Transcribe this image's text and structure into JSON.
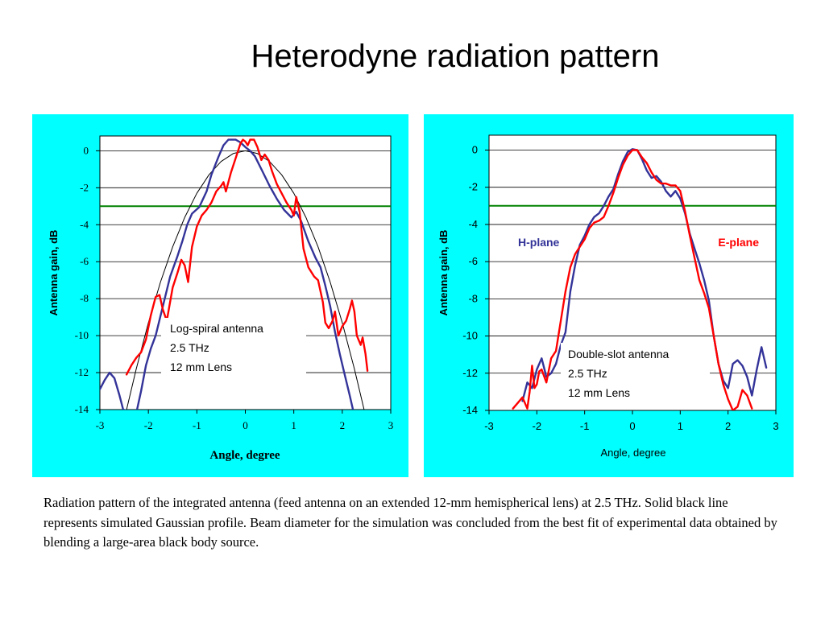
{
  "title": "Heterodyne radiation pattern",
  "caption": "Radiation pattern of the integrated antenna (feed antenna on an extended 12-mm hemispherical lens) at 2.5 THz. Solid black line represents simulated Gaussian profile. Beam diameter for the simulation was concluded from the best fit of experimental data obtained by blending a large-area black body source.",
  "colors": {
    "panel_bg": "#00FFFF",
    "plot_bg": "#FFFFFF",
    "blue": "#333399",
    "red": "#FF0000",
    "green": "#008000",
    "black": "#000000"
  },
  "chart_data": [
    {
      "type": "line",
      "xlabel": "Angle, degree",
      "ylabel": "Antenna gain, dB",
      "xlim": [
        -3,
        3
      ],
      "ylim": [
        -14,
        0.8
      ],
      "xticks": [
        "-3",
        "-2",
        "-1",
        "0",
        "1",
        "2",
        "3"
      ],
      "yticks": [
        "0",
        "-2",
        "-4",
        "-6",
        "-8",
        "-10",
        "-12",
        "-14"
      ],
      "grid": "horizontal",
      "annotation": [
        "Log-spiral antenna",
        "2.5 THz",
        "12 mm Lens"
      ],
      "reference_line_y": -3,
      "series": [
        {
          "color": "#333399",
          "points": [
            [
              -3,
              -12.9
            ],
            [
              -2.9,
              -12.4
            ],
            [
              -2.8,
              -12
            ],
            [
              -2.7,
              -12.3
            ],
            [
              -2.6,
              -13.2
            ],
            [
              -2.52,
              -14
            ],
            [
              -2.25,
              -14.2
            ],
            [
              -2.15,
              -13
            ],
            [
              -2.05,
              -11.6
            ],
            [
              -1.95,
              -10.7
            ],
            [
              -1.85,
              -10
            ],
            [
              -1.7,
              -8.4
            ],
            [
              -1.55,
              -6.8
            ],
            [
              -1.4,
              -5.7
            ],
            [
              -1.3,
              -4.9
            ],
            [
              -1.2,
              -4
            ],
            [
              -1.1,
              -3.4
            ],
            [
              -0.95,
              -3.05
            ],
            [
              -0.8,
              -2.2
            ],
            [
              -0.7,
              -1.3
            ],
            [
              -0.55,
              -0.3
            ],
            [
              -0.45,
              0.3
            ],
            [
              -0.35,
              0.6
            ],
            [
              -0.2,
              0.6
            ],
            [
              -0.1,
              0.45
            ],
            [
              0,
              0.2
            ],
            [
              0.1,
              0
            ],
            [
              0.2,
              -0.3
            ],
            [
              0.35,
              -1.1
            ],
            [
              0.5,
              -1.9
            ],
            [
              0.65,
              -2.6
            ],
            [
              0.8,
              -3.2
            ],
            [
              0.95,
              -3.6
            ],
            [
              1.05,
              -3.3
            ],
            [
              1.15,
              -3.8
            ],
            [
              1.3,
              -4.9
            ],
            [
              1.45,
              -5.8
            ],
            [
              1.55,
              -6.3
            ],
            [
              1.65,
              -7.3
            ],
            [
              1.75,
              -8.4
            ],
            [
              1.85,
              -9.8
            ],
            [
              1.95,
              -11
            ],
            [
              2.05,
              -12.1
            ],
            [
              2.15,
              -13.2
            ],
            [
              2.22,
              -14
            ]
          ]
        },
        {
          "color": "#FF0000",
          "points": [
            [
              -2.45,
              -12.1
            ],
            [
              -2.35,
              -11.6
            ],
            [
              -2.25,
              -11.2
            ],
            [
              -2.15,
              -10.9
            ],
            [
              -2.05,
              -10.2
            ],
            [
              -1.95,
              -8.9
            ],
            [
              -1.85,
              -7.9
            ],
            [
              -1.77,
              -7.8
            ],
            [
              -1.7,
              -8.6
            ],
            [
              -1.62,
              -9.2
            ],
            [
              -1.5,
              -7.4
            ],
            [
              -1.4,
              -6.6
            ],
            [
              -1.32,
              -5.9
            ],
            [
              -1.25,
              -6.2
            ],
            [
              -1.18,
              -7.1
            ],
            [
              -1.1,
              -5.2
            ],
            [
              -1.0,
              -4.1
            ],
            [
              -0.9,
              -3.5
            ],
            [
              -0.8,
              -3.2
            ],
            [
              -0.7,
              -2.8
            ],
            [
              -0.6,
              -2.2
            ],
            [
              -0.5,
              -1.9
            ],
            [
              -0.45,
              -1.7
            ],
            [
              -0.4,
              -2.2
            ],
            [
              -0.3,
              -1.2
            ],
            [
              -0.2,
              -0.4
            ],
            [
              -0.1,
              0.4
            ],
            [
              -0.05,
              0.6
            ],
            [
              0,
              0.5
            ],
            [
              0.05,
              0.3
            ],
            [
              0.1,
              0.6
            ],
            [
              0.18,
              0.6
            ],
            [
              0.25,
              0.2
            ],
            [
              0.33,
              -0.5
            ],
            [
              0.4,
              -0.2
            ],
            [
              0.48,
              -0.5
            ],
            [
              0.55,
              -1.1
            ],
            [
              0.65,
              -1.8
            ],
            [
              0.75,
              -2.3
            ],
            [
              0.85,
              -2.8
            ],
            [
              0.95,
              -3.2
            ],
            [
              1.0,
              -3.5
            ],
            [
              1.05,
              -2.5
            ],
            [
              1.12,
              -3.3
            ],
            [
              1.2,
              -5.3
            ],
            [
              1.3,
              -6.3
            ],
            [
              1.42,
              -6.8
            ],
            [
              1.5,
              -7
            ],
            [
              1.6,
              -8.2
            ],
            [
              1.65,
              -9.3
            ],
            [
              1.72,
              -9.6
            ],
            [
              1.8,
              -9.2
            ],
            [
              1.85,
              -8.7
            ],
            [
              1.92,
              -10
            ],
            [
              2.0,
              -9.5
            ],
            [
              2.08,
              -9.2
            ],
            [
              2.15,
              -8.6
            ],
            [
              2.2,
              -8.1
            ],
            [
              2.25,
              -8.7
            ],
            [
              2.3,
              -10
            ],
            [
              2.38,
              -10.5
            ],
            [
              2.42,
              -10.1
            ],
            [
              2.48,
              -11
            ],
            [
              2.52,
              -11.9
            ]
          ]
        },
        {
          "color": "#000000",
          "name": "",
          "points": [
            [
              -2.45,
              -14
            ],
            [
              -2.25,
              -11.8
            ],
            [
              -2.0,
              -9.3
            ],
            [
              -1.75,
              -7.1
            ],
            [
              -1.5,
              -5.2
            ],
            [
              -1.25,
              -3.6
            ],
            [
              -1.0,
              -2.3
            ],
            [
              -0.75,
              -1.3
            ],
            [
              -0.5,
              -0.58
            ],
            [
              -0.25,
              -0.15
            ],
            [
              0,
              0
            ],
            [
              0.25,
              -0.15
            ],
            [
              0.5,
              -0.58
            ],
            [
              0.75,
              -1.3
            ],
            [
              1.0,
              -2.3
            ],
            [
              1.25,
              -3.6
            ],
            [
              1.5,
              -5.2
            ],
            [
              1.75,
              -7.1
            ],
            [
              2.0,
              -9.3
            ],
            [
              2.25,
              -11.8
            ],
            [
              2.45,
              -14
            ]
          ]
        }
      ]
    },
    {
      "type": "line",
      "xlabel": "Angle, degree",
      "ylabel": "Antenna gain, dB",
      "xlim": [
        -3,
        3
      ],
      "ylim": [
        -14,
        0.8
      ],
      "xticks": [
        "-3",
        "-2",
        "-1",
        "0",
        "1",
        "2",
        "3"
      ],
      "yticks": [
        "0",
        "-2",
        "-4",
        "-6",
        "-8",
        "-10",
        "-12",
        "-14"
      ],
      "grid": "horizontal",
      "annotation": [
        "Double-slot antenna",
        "2.5 THz",
        "12 mm Lens"
      ],
      "reference_line_y": -3,
      "series": [
        {
          "name": "H-plane",
          "color": "#333399",
          "points": [
            [
              -2.3,
              -13.5
            ],
            [
              -2.2,
              -12.5
            ],
            [
              -2.1,
              -12.8
            ],
            [
              -2.0,
              -11.8
            ],
            [
              -1.9,
              -11.2
            ],
            [
              -1.8,
              -12.2
            ],
            [
              -1.7,
              -12
            ],
            [
              -1.6,
              -11.5
            ],
            [
              -1.5,
              -10.5
            ],
            [
              -1.4,
              -9.8
            ],
            [
              -1.3,
              -7.6
            ],
            [
              -1.2,
              -6.2
            ],
            [
              -1.1,
              -5.1
            ],
            [
              -1.0,
              -4.6
            ],
            [
              -0.9,
              -4.0
            ],
            [
              -0.8,
              -3.6
            ],
            [
              -0.7,
              -3.4
            ],
            [
              -0.6,
              -3.0
            ],
            [
              -0.5,
              -2.5
            ],
            [
              -0.4,
              -2.1
            ],
            [
              -0.3,
              -1.3
            ],
            [
              -0.2,
              -0.6
            ],
            [
              -0.1,
              -0.1
            ],
            [
              0,
              0.05
            ],
            [
              0.1,
              0
            ],
            [
              0.2,
              -0.5
            ],
            [
              0.3,
              -1.1
            ],
            [
              0.4,
              -1.5
            ],
            [
              0.5,
              -1.4
            ],
            [
              0.6,
              -1.7
            ],
            [
              0.7,
              -2.2
            ],
            [
              0.8,
              -2.5
            ],
            [
              0.9,
              -2.2
            ],
            [
              1.0,
              -2.6
            ],
            [
              1.1,
              -3.4
            ],
            [
              1.2,
              -4.5
            ],
            [
              1.3,
              -5.3
            ],
            [
              1.4,
              -6.1
            ],
            [
              1.5,
              -7.0
            ],
            [
              1.6,
              -8.1
            ],
            [
              1.7,
              -10
            ],
            [
              1.8,
              -11.5
            ],
            [
              1.9,
              -12.4
            ],
            [
              2.0,
              -12.8
            ],
            [
              2.1,
              -11.5
            ],
            [
              2.2,
              -11.3
            ],
            [
              2.3,
              -11.6
            ],
            [
              2.4,
              -12.2
            ],
            [
              2.5,
              -13.2
            ],
            [
              2.6,
              -11.8
            ],
            [
              2.7,
              -10.6
            ],
            [
              2.8,
              -11.7
            ]
          ]
        },
        {
          "name": "E-plane",
          "color": "#FF0000",
          "points": [
            [
              -2.5,
              -13.9
            ],
            [
              -2.4,
              -13.6
            ],
            [
              -2.3,
              -13.3
            ],
            [
              -2.2,
              -13.9
            ],
            [
              -2.15,
              -13
            ],
            [
              -2.1,
              -11.6
            ],
            [
              -2.05,
              -12.8
            ],
            [
              -2.0,
              -12.6
            ],
            [
              -1.95,
              -11.9
            ],
            [
              -1.9,
              -11.8
            ],
            [
              -1.8,
              -12.5
            ],
            [
              -1.7,
              -11.2
            ],
            [
              -1.6,
              -10.8
            ],
            [
              -1.5,
              -9.2
            ],
            [
              -1.4,
              -7.6
            ],
            [
              -1.3,
              -6.3
            ],
            [
              -1.2,
              -5.6
            ],
            [
              -1.1,
              -5.2
            ],
            [
              -1.0,
              -4.8
            ],
            [
              -0.9,
              -4.2
            ],
            [
              -0.8,
              -3.9
            ],
            [
              -0.7,
              -3.8
            ],
            [
              -0.6,
              -3.6
            ],
            [
              -0.5,
              -3.0
            ],
            [
              -0.4,
              -2.3
            ],
            [
              -0.3,
              -1.5
            ],
            [
              -0.2,
              -0.8
            ],
            [
              -0.1,
              -0.3
            ],
            [
              0,
              0
            ],
            [
              0.1,
              0
            ],
            [
              0.2,
              -0.4
            ],
            [
              0.3,
              -0.7
            ],
            [
              0.4,
              -1.2
            ],
            [
              0.5,
              -1.6
            ],
            [
              0.6,
              -1.8
            ],
            [
              0.7,
              -1.8
            ],
            [
              0.8,
              -1.9
            ],
            [
              0.9,
              -1.9
            ],
            [
              1.0,
              -2.2
            ],
            [
              1.1,
              -3.3
            ],
            [
              1.2,
              -4.6
            ],
            [
              1.3,
              -5.8
            ],
            [
              1.4,
              -7.0
            ],
            [
              1.5,
              -7.7
            ],
            [
              1.6,
              -8.5
            ],
            [
              1.7,
              -10
            ],
            [
              1.8,
              -11.5
            ],
            [
              1.9,
              -12.6
            ],
            [
              2.0,
              -13.4
            ],
            [
              2.1,
              -14
            ],
            [
              2.2,
              -13.8
            ],
            [
              2.3,
              -12.9
            ],
            [
              2.4,
              -13.2
            ],
            [
              2.5,
              -13.9
            ]
          ]
        }
      ]
    }
  ]
}
